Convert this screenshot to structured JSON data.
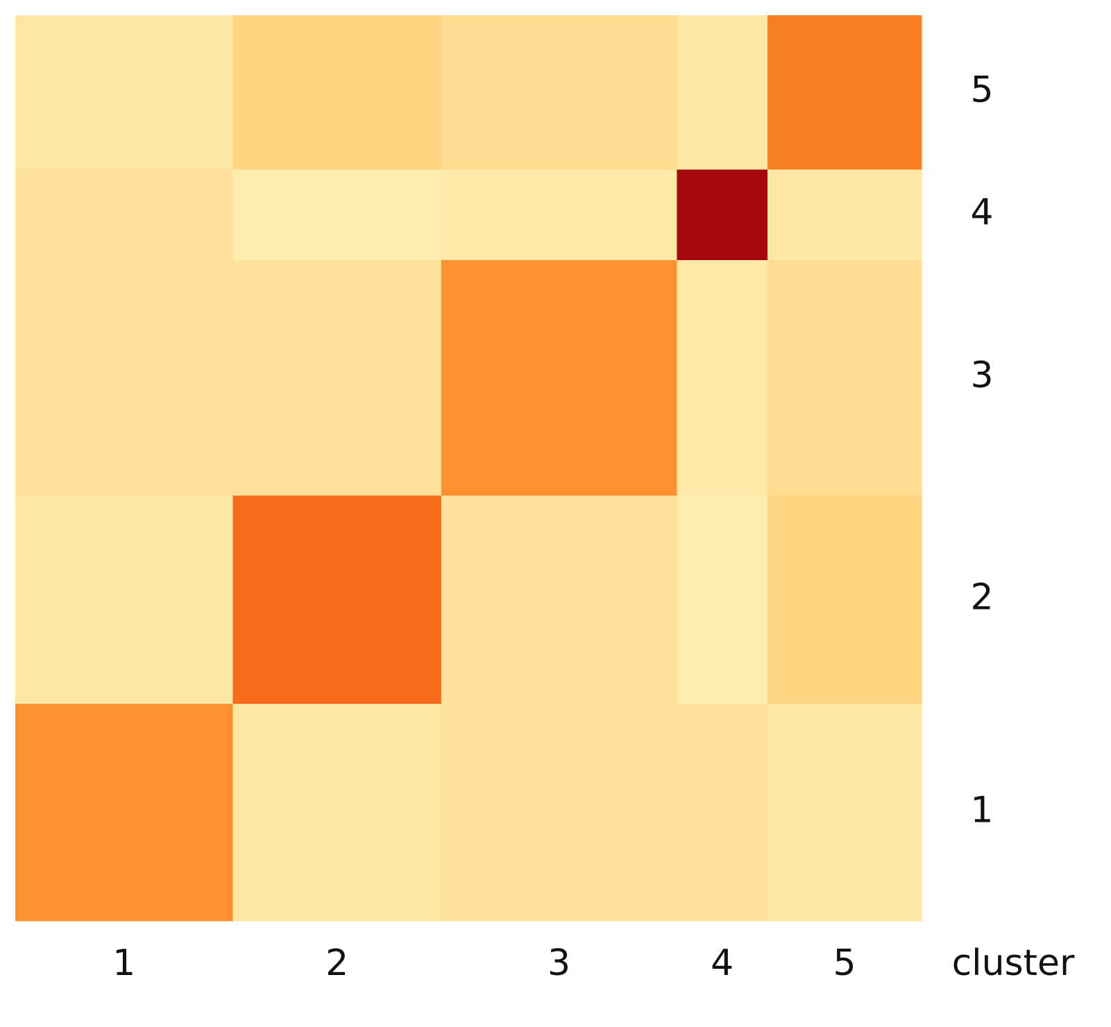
{
  "chart_data": {
    "type": "heatmap",
    "x_label": "cluster",
    "categories": [
      "1",
      "2",
      "3",
      "4",
      "5"
    ],
    "sizes": [
      24,
      23,
      26,
      10,
      17
    ],
    "matrix": [
      [
        0.45,
        0.12,
        0.15,
        0.15,
        0.12
      ],
      [
        0.12,
        0.55,
        0.15,
        0.08,
        0.22
      ],
      [
        0.15,
        0.15,
        0.45,
        0.1,
        0.18
      ],
      [
        0.15,
        0.08,
        0.1,
        0.85,
        0.12
      ],
      [
        0.12,
        0.22,
        0.18,
        0.12,
        0.5
      ]
    ],
    "zlim": [
      0,
      1
    ],
    "colors": [
      "#fff9c8",
      "#fed98a",
      "#fda33a",
      "#f35a12",
      "#b30c0c",
      "#7a0010"
    ]
  }
}
